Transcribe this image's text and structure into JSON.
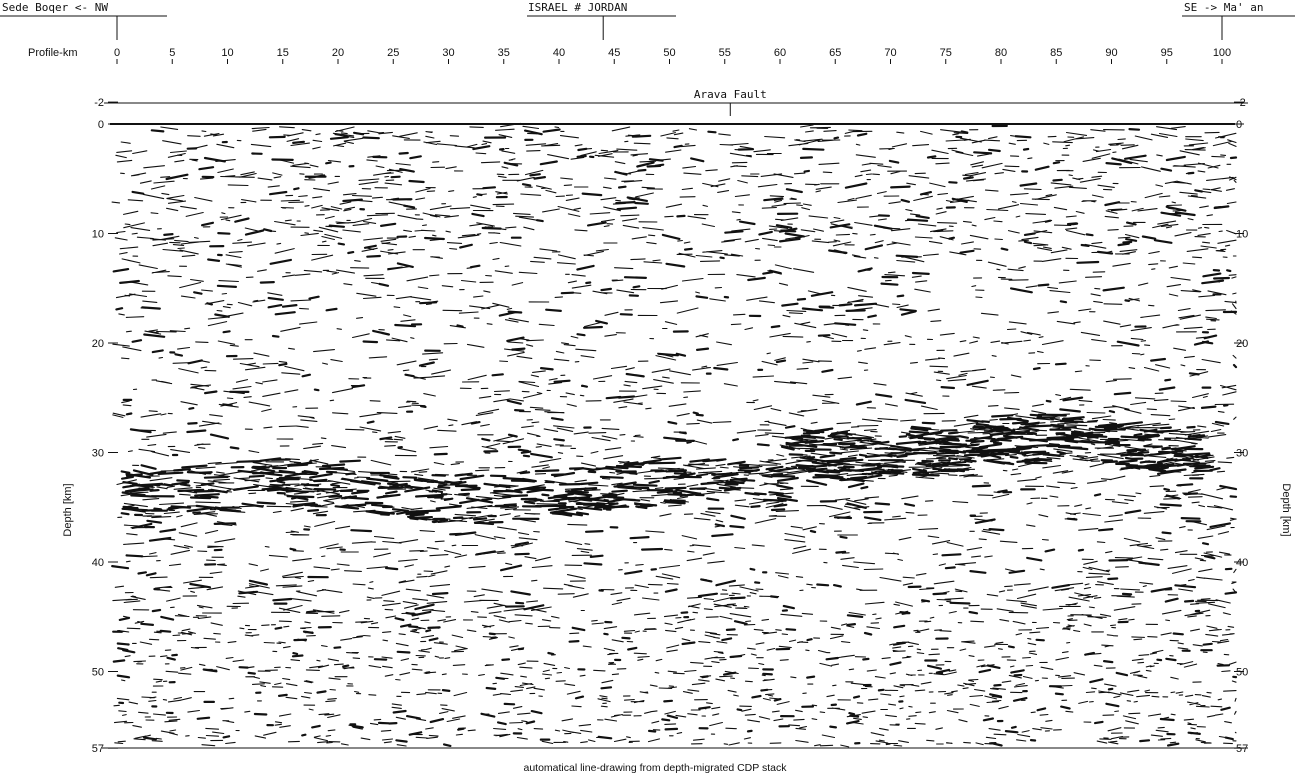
{
  "header": {
    "left_label": "Sede Boqer <- NW",
    "center_label": "ISRAEL # JORDAN",
    "right_label": "SE -> Ma' an",
    "profile_label": "Profile-km"
  },
  "profile_axis": {
    "ticks": [
      0,
      5,
      10,
      15,
      20,
      25,
      30,
      35,
      40,
      45,
      50,
      55,
      60,
      65,
      70,
      75,
      80,
      85,
      90,
      95,
      100
    ],
    "range_km": [
      0,
      101
    ],
    "left_marker_km": 0,
    "border_marker_km": 44,
    "right_marker_km": 100
  },
  "fault": {
    "label": "Arava Fault",
    "position_km": 55.5
  },
  "depth_axis": {
    "label": "Depth [km]",
    "ticks": [
      -2,
      0,
      10,
      20,
      30,
      40,
      50,
      57
    ],
    "range_km": [
      -2,
      57
    ]
  },
  "reflector_bands": [
    {
      "depth_km": 33.5,
      "from_km": 0,
      "to_km": 60,
      "strength": "strong"
    },
    {
      "depth_km": 29.5,
      "from_km": 60,
      "to_km": 98,
      "strength": "strong"
    }
  ],
  "caption": "automatical line-drawing from depth-migrated CDP stack",
  "colors": {
    "ink": "#111111",
    "background": "#ffffff"
  }
}
